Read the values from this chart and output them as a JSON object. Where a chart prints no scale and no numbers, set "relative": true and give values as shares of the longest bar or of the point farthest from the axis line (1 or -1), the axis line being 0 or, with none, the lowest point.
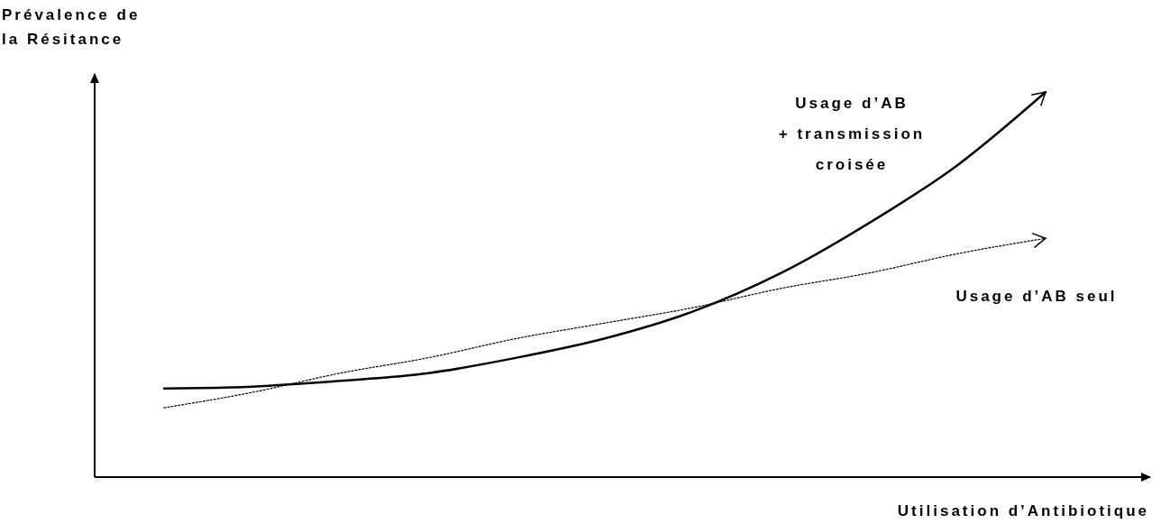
{
  "chart_data": {
    "type": "line",
    "relative": true,
    "xlabel": "Utilisation d’Antibiotique",
    "ylabel": "Prévalence de la Résitance",
    "categories": [
      null,
      null,
      null,
      null,
      null,
      null,
      null,
      null,
      null,
      null,
      null
    ],
    "marker": "none",
    "series": [
      {
        "name": "Usage d’AB + transmission croisée",
        "color": "#000000",
        "line_style": "solid",
        "values": [
          0.23,
          0.235,
          0.25,
          0.27,
          0.31,
          0.36,
          0.43,
          0.53,
          0.66,
          0.81,
          1.0
        ]
      },
      {
        "name": "Usage d’AB seul",
        "color": "#000000",
        "line_style": "dotted",
        "values": [
          0.18,
          0.22,
          0.27,
          0.31,
          0.36,
          0.4,
          0.44,
          0.49,
          0.53,
          0.58,
          0.62
        ]
      }
    ]
  }
}
